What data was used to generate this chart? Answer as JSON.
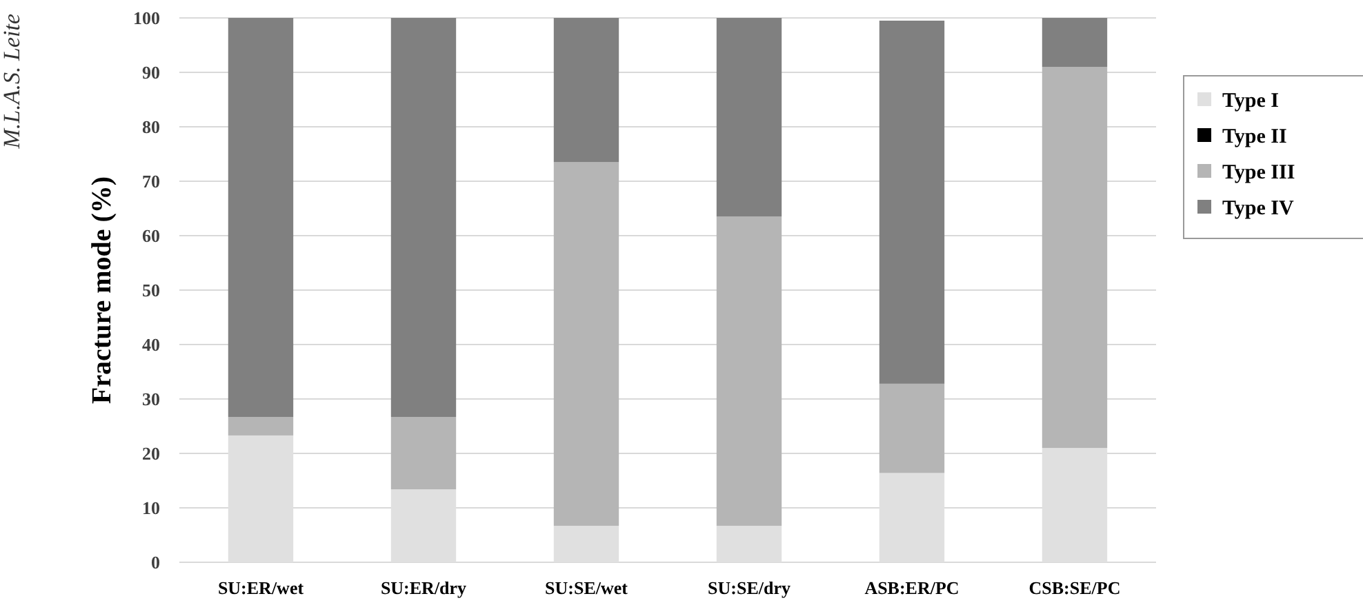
{
  "chart_data": {
    "type": "bar",
    "stacked": true,
    "ylabel": "Fracture mode (%)",
    "annotations": [
      "M.L.A.S. Leite"
    ],
    "categories": [
      "SU:ER/wet",
      "SU:ER/dry",
      "SU:SE/wet",
      "SU:SE/dry",
      "ASB:ER/PC",
      "CSB:SE/PC"
    ],
    "series": [
      {
        "name": "Type I",
        "color": "#e0e0e0",
        "values": [
          23.3,
          13.4,
          6.7,
          6.7,
          16.4,
          21
        ]
      },
      {
        "name": "Type II",
        "color": "#000000",
        "values": [
          0,
          0,
          0,
          0,
          0,
          0
        ]
      },
      {
        "name": "Type III",
        "color": "#b5b5b5",
        "values": [
          3.4,
          13.3,
          66.8,
          56.8,
          16.4,
          70
        ]
      },
      {
        "name": "Type IV",
        "color": "#808080",
        "values": [
          73.3,
          73.3,
          26.5,
          36.5,
          66.7,
          9
        ]
      }
    ],
    "ylim": [
      0,
      100
    ],
    "yticks": [
      0,
      10,
      20,
      30,
      40,
      50,
      60,
      70,
      80,
      90,
      100
    ],
    "grid": "y",
    "legend": "right"
  }
}
